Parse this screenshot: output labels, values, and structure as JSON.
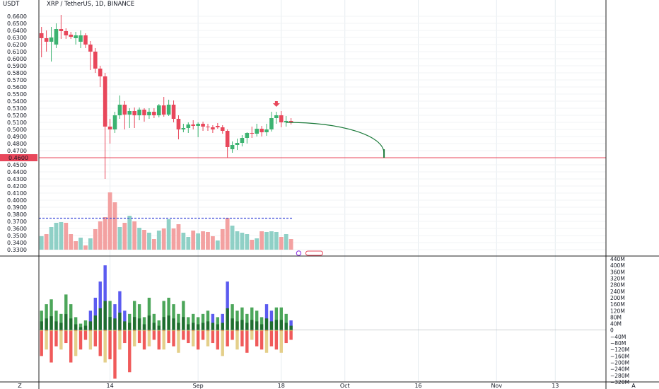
{
  "header": {
    "currency": "USDT",
    "symbol_line": "XRP / TetherUS, 1D, BINANCE"
  },
  "colors": {
    "up": "#26a69a",
    "down": "#ef5350",
    "candle_up": "#3cb371",
    "candle_down": "#e8475b",
    "grid": "#e6ecf0",
    "price_line": "#e8475b",
    "projection": "#1b7a3a",
    "vol_up": "#8fd0c6",
    "vol_down": "#f3a1a1",
    "vol_avg": "#3d4bd8",
    "osc_blue": "#5b5bf0",
    "osc_green": "#4ca65a",
    "osc_dkgreen": "#1f6e2f",
    "osc_red": "#f05a5a",
    "osc_tan": "#e4cf8a",
    "osc_orange": "#e3a155"
  },
  "chart_data": [
    {
      "type": "candlestick",
      "title": "XRP / TetherUS, 1D, BINANCE",
      "ylabel": "USDT",
      "ylim": [
        0.325,
        0.67
      ],
      "price_ticks": [
        "0.6600",
        "0.6500",
        "0.6400",
        "0.6300",
        "0.6200",
        "0.6100",
        "0.6000",
        "0.5900",
        "0.5800",
        "0.5700",
        "0.5600",
        "0.5500",
        "0.5400",
        "0.5300",
        "0.5200",
        "0.5100",
        "0.5000",
        "0.4900",
        "0.4800",
        "0.4700",
        "0.4500",
        "0.4400",
        "0.4300",
        "0.4200",
        "0.4100",
        "0.4000",
        "0.3900",
        "0.3800",
        "0.3700",
        "0.3600",
        "0.3500",
        "0.3400",
        "0.3300"
      ],
      "x_ticks": [
        {
          "label": "14",
          "day": 14
        },
        {
          "label": "Sep",
          "day": 32
        },
        {
          "label": "18",
          "day": 49
        },
        {
          "label": "Oct",
          "day": 62
        },
        {
          "label": "16",
          "day": 77
        },
        {
          "label": "Nov",
          "day": 93
        },
        {
          "label": "13",
          "day": 105
        }
      ],
      "x_ticks_partial": {
        "left": "Z",
        "right": "A"
      },
      "current_price_label": "0.4600",
      "current_price": 0.46,
      "candles": [
        {
          "o": 0.636,
          "h": 0.645,
          "l": 0.602,
          "c": 0.629
        },
        {
          "o": 0.629,
          "h": 0.64,
          "l": 0.61,
          "c": 0.624
        },
        {
          "o": 0.624,
          "h": 0.645,
          "l": 0.596,
          "c": 0.63
        },
        {
          "o": 0.62,
          "h": 0.65,
          "l": 0.615,
          "c": 0.642
        },
        {
          "o": 0.642,
          "h": 0.662,
          "l": 0.628,
          "c": 0.639
        },
        {
          "o": 0.639,
          "h": 0.643,
          "l": 0.628,
          "c": 0.633
        },
        {
          "o": 0.634,
          "h": 0.638,
          "l": 0.628,
          "c": 0.631
        },
        {
          "o": 0.629,
          "h": 0.638,
          "l": 0.62,
          "c": 0.633
        },
        {
          "o": 0.624,
          "h": 0.64,
          "l": 0.615,
          "c": 0.633
        },
        {
          "o": 0.633,
          "h": 0.636,
          "l": 0.615,
          "c": 0.62
        },
        {
          "o": 0.62,
          "h": 0.625,
          "l": 0.584,
          "c": 0.61
        },
        {
          "o": 0.61,
          "h": 0.615,
          "l": 0.58,
          "c": 0.586
        },
        {
          "o": 0.586,
          "h": 0.59,
          "l": 0.56,
          "c": 0.575
        },
        {
          "o": 0.575,
          "h": 0.58,
          "l": 0.43,
          "c": 0.504
        },
        {
          "o": 0.504,
          "h": 0.515,
          "l": 0.48,
          "c": 0.5
        },
        {
          "o": 0.5,
          "h": 0.525,
          "l": 0.495,
          "c": 0.52
        },
        {
          "o": 0.52,
          "h": 0.548,
          "l": 0.515,
          "c": 0.535
        },
        {
          "o": 0.535,
          "h": 0.54,
          "l": 0.5,
          "c": 0.521
        },
        {
          "o": 0.521,
          "h": 0.53,
          "l": 0.502,
          "c": 0.526
        },
        {
          "o": 0.526,
          "h": 0.531,
          "l": 0.502,
          "c": 0.52
        },
        {
          "o": 0.52,
          "h": 0.531,
          "l": 0.513,
          "c": 0.528
        },
        {
          "o": 0.528,
          "h": 0.53,
          "l": 0.511,
          "c": 0.52
        },
        {
          "o": 0.52,
          "h": 0.53,
          "l": 0.515,
          "c": 0.525
        },
        {
          "o": 0.525,
          "h": 0.53,
          "l": 0.516,
          "c": 0.52
        },
        {
          "o": 0.52,
          "h": 0.536,
          "l": 0.517,
          "c": 0.534
        },
        {
          "o": 0.534,
          "h": 0.546,
          "l": 0.518,
          "c": 0.521
        },
        {
          "o": 0.521,
          "h": 0.542,
          "l": 0.519,
          "c": 0.535
        },
        {
          "o": 0.535,
          "h": 0.541,
          "l": 0.51,
          "c": 0.515
        },
        {
          "o": 0.515,
          "h": 0.52,
          "l": 0.486,
          "c": 0.5
        },
        {
          "o": 0.5,
          "h": 0.508,
          "l": 0.496,
          "c": 0.502
        },
        {
          "o": 0.502,
          "h": 0.51,
          "l": 0.495,
          "c": 0.507
        },
        {
          "o": 0.507,
          "h": 0.513,
          "l": 0.5,
          "c": 0.505
        },
        {
          "o": 0.505,
          "h": 0.51,
          "l": 0.489,
          "c": 0.508
        },
        {
          "o": 0.508,
          "h": 0.511,
          "l": 0.498,
          "c": 0.504
        },
        {
          "o": 0.504,
          "h": 0.508,
          "l": 0.498,
          "c": 0.503
        },
        {
          "o": 0.503,
          "h": 0.506,
          "l": 0.495,
          "c": 0.5
        },
        {
          "o": 0.505,
          "h": 0.509,
          "l": 0.501,
          "c": 0.503
        },
        {
          "o": 0.503,
          "h": 0.506,
          "l": 0.494,
          "c": 0.498
        },
        {
          "o": 0.498,
          "h": 0.5,
          "l": 0.46,
          "c": 0.475
        },
        {
          "o": 0.472,
          "h": 0.483,
          "l": 0.467,
          "c": 0.478
        },
        {
          "o": 0.478,
          "h": 0.487,
          "l": 0.471,
          "c": 0.481
        },
        {
          "o": 0.481,
          "h": 0.492,
          "l": 0.476,
          "c": 0.488
        },
        {
          "o": 0.488,
          "h": 0.496,
          "l": 0.48,
          "c": 0.495
        },
        {
          "o": 0.495,
          "h": 0.504,
          "l": 0.488,
          "c": 0.494
        },
        {
          "o": 0.494,
          "h": 0.508,
          "l": 0.49,
          "c": 0.501
        },
        {
          "o": 0.501,
          "h": 0.505,
          "l": 0.49,
          "c": 0.496
        },
        {
          "o": 0.496,
          "h": 0.508,
          "l": 0.491,
          "c": 0.5
        },
        {
          "o": 0.5,
          "h": 0.525,
          "l": 0.497,
          "c": 0.516
        },
        {
          "o": 0.516,
          "h": 0.525,
          "l": 0.508,
          "c": 0.52
        },
        {
          "o": 0.52,
          "h": 0.526,
          "l": 0.503,
          "c": 0.51
        },
        {
          "o": 0.51,
          "h": 0.519,
          "l": 0.504,
          "c": 0.512
        },
        {
          "o": 0.512,
          "h": 0.516,
          "l": 0.507,
          "c": 0.51
        }
      ],
      "projection": {
        "start": {
          "day": 50,
          "price": 0.51
        },
        "end": {
          "day": 70,
          "price": 0.46
        }
      },
      "sell_marker": {
        "day": 48,
        "price": 0.536
      }
    },
    {
      "type": "bar",
      "title": "Volume",
      "ylim": [
        0.33,
        0.41
      ],
      "volume_average": 0.3745,
      "volumes": [
        0.349,
        0.352,
        0.362,
        0.368,
        0.369,
        0.368,
        0.352,
        0.342,
        0.347,
        0.336,
        0.346,
        0.359,
        0.37,
        0.376,
        0.411,
        0.397,
        0.362,
        0.368,
        0.378,
        0.37,
        0.361,
        0.358,
        0.354,
        0.345,
        0.357,
        0.36,
        0.373,
        0.36,
        0.366,
        0.354,
        0.348,
        0.357,
        0.353,
        0.356,
        0.355,
        0.349,
        0.343,
        0.359,
        0.375,
        0.364,
        0.356,
        0.354,
        0.352,
        0.344,
        0.346,
        0.356,
        0.355,
        0.356,
        0.355,
        0.348,
        0.352,
        0.345
      ],
      "volume_up": [
        true,
        false,
        true,
        true,
        true,
        false,
        false,
        false,
        true,
        false,
        true,
        false,
        false,
        false,
        false,
        false,
        true,
        false,
        true,
        false,
        true,
        false,
        true,
        false,
        true,
        false,
        true,
        false,
        false,
        true,
        true,
        false,
        true,
        false,
        false,
        false,
        true,
        false,
        false,
        true,
        true,
        true,
        true,
        false,
        true,
        false,
        true,
        true,
        true,
        false,
        true,
        false
      ]
    },
    {
      "type": "bar",
      "title": "Oscillator",
      "ylim": [
        -320,
        440
      ],
      "axis_ticks": [
        "440M",
        "400M",
        "360M",
        "320M",
        "280M",
        "240M",
        "200M",
        "160M",
        "120M",
        "80M",
        "40M",
        "0",
        "−40M",
        "−80M",
        "−120M",
        "−160M",
        "−200M",
        "−240M",
        "−280M",
        "−320M"
      ],
      "positive_values": [
        120,
        160,
        190,
        120,
        100,
        220,
        160,
        80,
        40,
        60,
        120,
        200,
        300,
        400,
        180,
        160,
        240,
        120,
        100,
        180,
        160,
        80,
        200,
        100,
        60,
        180,
        200,
        160,
        100,
        180,
        80,
        100,
        80,
        100,
        120,
        100,
        80,
        100,
        300,
        160,
        120,
        140,
        100,
        140,
        120,
        80,
        160,
        120,
        140,
        140,
        100,
        60
      ],
      "negative_values": [
        -160,
        -120,
        -200,
        -100,
        -120,
        -80,
        -200,
        -160,
        -120,
        -60,
        -120,
        -100,
        -160,
        -200,
        -180,
        -300,
        -120,
        -80,
        -260,
        -100,
        -80,
        -120,
        -100,
        -60,
        -120,
        -120,
        -80,
        -100,
        -140,
        -60,
        -80,
        -100,
        -120,
        -60,
        -100,
        -80,
        -120,
        -160,
        -100,
        -60,
        -120,
        -100,
        -140,
        -60,
        -100,
        -120,
        -140,
        -100,
        -120,
        -140,
        -80,
        -60
      ],
      "positive_colors": [
        "green",
        "green",
        "green",
        "green",
        "green",
        "green",
        "green",
        "green",
        "green",
        "green",
        "blue",
        "blue",
        "blue",
        "blue",
        "green",
        "blue",
        "blue",
        "blue",
        "green",
        "green",
        "green",
        "green",
        "green",
        "green",
        "green",
        "green",
        "green",
        "green",
        "green",
        "green",
        "green",
        "green",
        "green",
        "green",
        "green",
        "blue",
        "green",
        "blue",
        "blue",
        "green",
        "green",
        "green",
        "green",
        "green",
        "green",
        "green",
        "blue",
        "blue",
        "green",
        "green",
        "green",
        "blue"
      ]
    }
  ]
}
